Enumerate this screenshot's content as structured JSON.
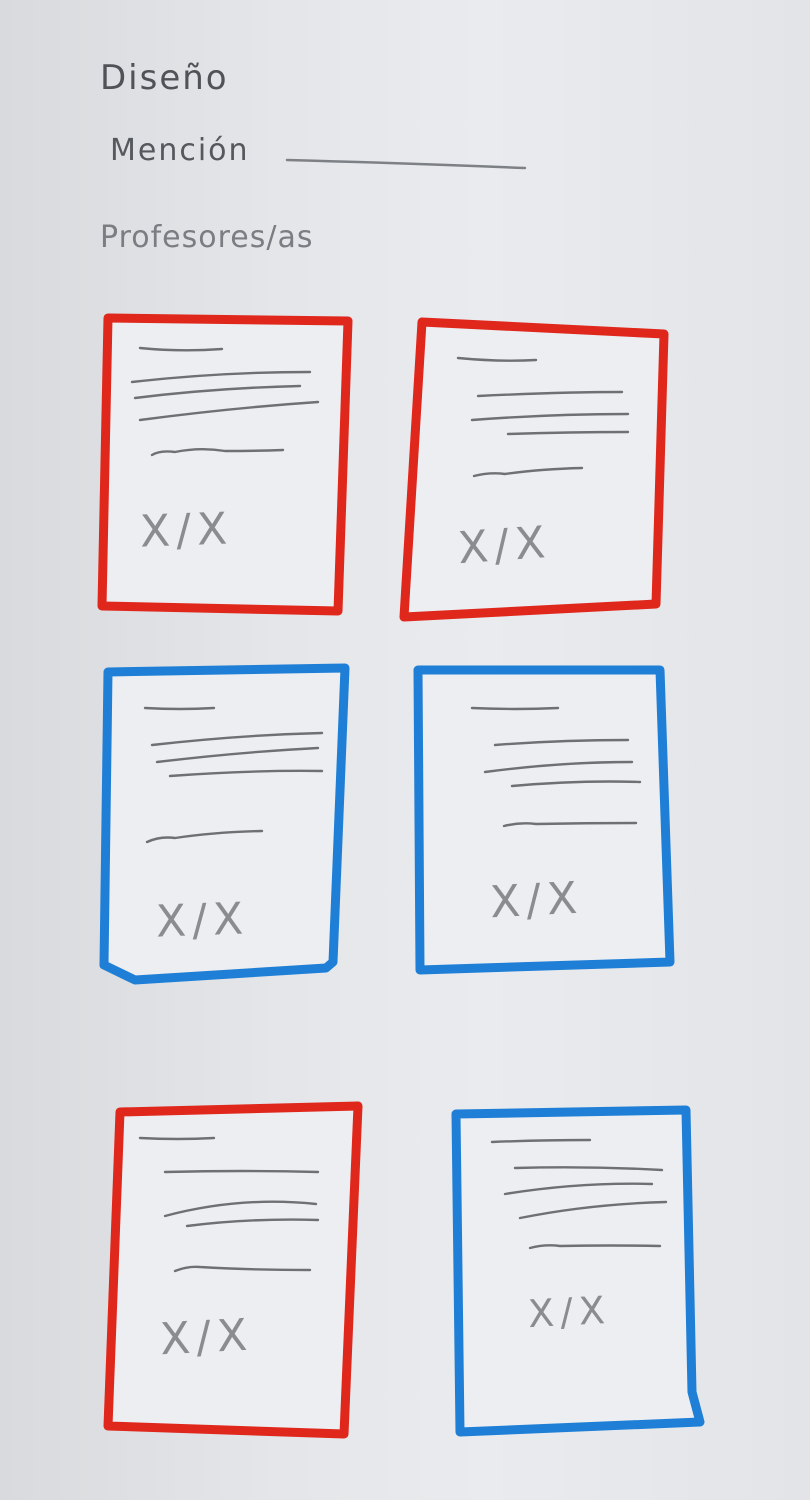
{
  "header": {
    "title": "Diseño",
    "mention_label": "Mención",
    "teachers_label": "Profesores/as"
  },
  "card_template": {
    "placeholder_mark": "X/X"
  },
  "cards": [
    {
      "id": "card-1",
      "border_color": "#e0271c"
    },
    {
      "id": "card-2",
      "border_color": "#e0271c"
    },
    {
      "id": "card-3",
      "border_color": "#1f7fd6"
    },
    {
      "id": "card-4",
      "border_color": "#1f7fd6"
    },
    {
      "id": "card-5",
      "border_color": "#e0271c"
    },
    {
      "id": "card-6",
      "border_color": "#1f7fd6"
    }
  ],
  "colors": {
    "red_card": "#e0271c",
    "blue_card": "#1f7fd6",
    "pencil": "#6e7074",
    "paper": "#e7e9ec"
  }
}
